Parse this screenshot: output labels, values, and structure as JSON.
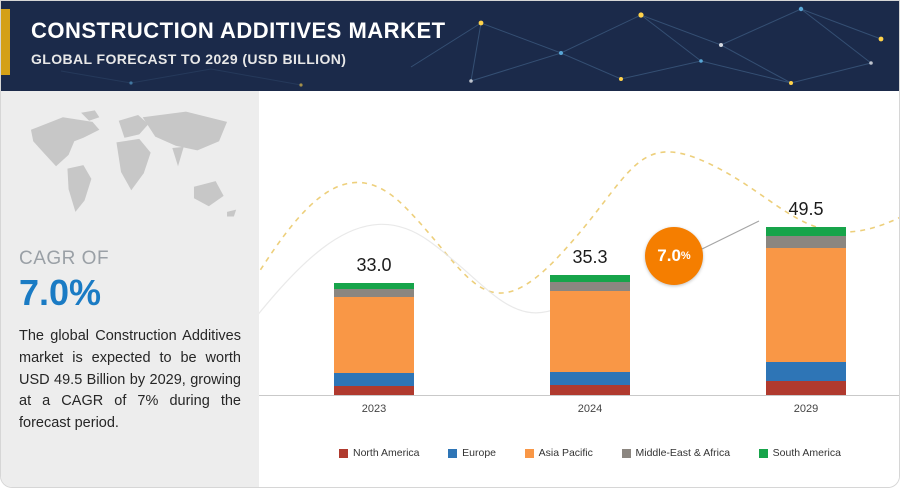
{
  "header": {
    "title": "CONSTRUCTION ADDITIVES MARKET",
    "subtitle": "GLOBAL FORECAST TO 2029 (USD BILLION)"
  },
  "left_panel": {
    "cagr_label": "CAGR OF",
    "cagr_value": "7.0%",
    "description": "The global Construction Additives market is expected to be worth USD 49.5 Billion by 2029, growing at a CAGR of 7% during the forecast period."
  },
  "badge": {
    "value": "7.0",
    "suffix": "%"
  },
  "colors": {
    "header_bg": "#1b2a4a",
    "accent_gold": "#d4a017",
    "cagr_blue": "#1a7bc4",
    "badge_orange": "#f57e00",
    "panel_gray": "#ededed"
  },
  "chart_data": {
    "type": "bar",
    "stacked": true,
    "categories": [
      "2023",
      "2024",
      "2029"
    ],
    "totals": [
      33.0,
      35.3,
      49.5
    ],
    "series": [
      {
        "name": "North America",
        "color": "#b03a2e",
        "values": [
          2.8,
          3.0,
          4.2
        ]
      },
      {
        "name": "Europe",
        "color": "#2e75b6",
        "values": [
          3.7,
          3.9,
          5.5
        ]
      },
      {
        "name": "Asia Pacific",
        "color": "#f99746",
        "values": [
          22.2,
          23.8,
          33.5
        ]
      },
      {
        "name": "Middle-East & Africa",
        "color": "#8b8680",
        "values": [
          2.4,
          2.6,
          3.6
        ]
      },
      {
        "name": "South America",
        "color": "#17a44a",
        "values": [
          1.9,
          2.0,
          2.7
        ]
      }
    ],
    "title": "Construction Additives Market, Global Forecast to 2029 (USD Billion)",
    "xlabel": "",
    "ylabel": "",
    "ylim": [
      0,
      55
    ],
    "grid": false,
    "legend_position": "bottom",
    "growth_badge": "7.0%"
  }
}
